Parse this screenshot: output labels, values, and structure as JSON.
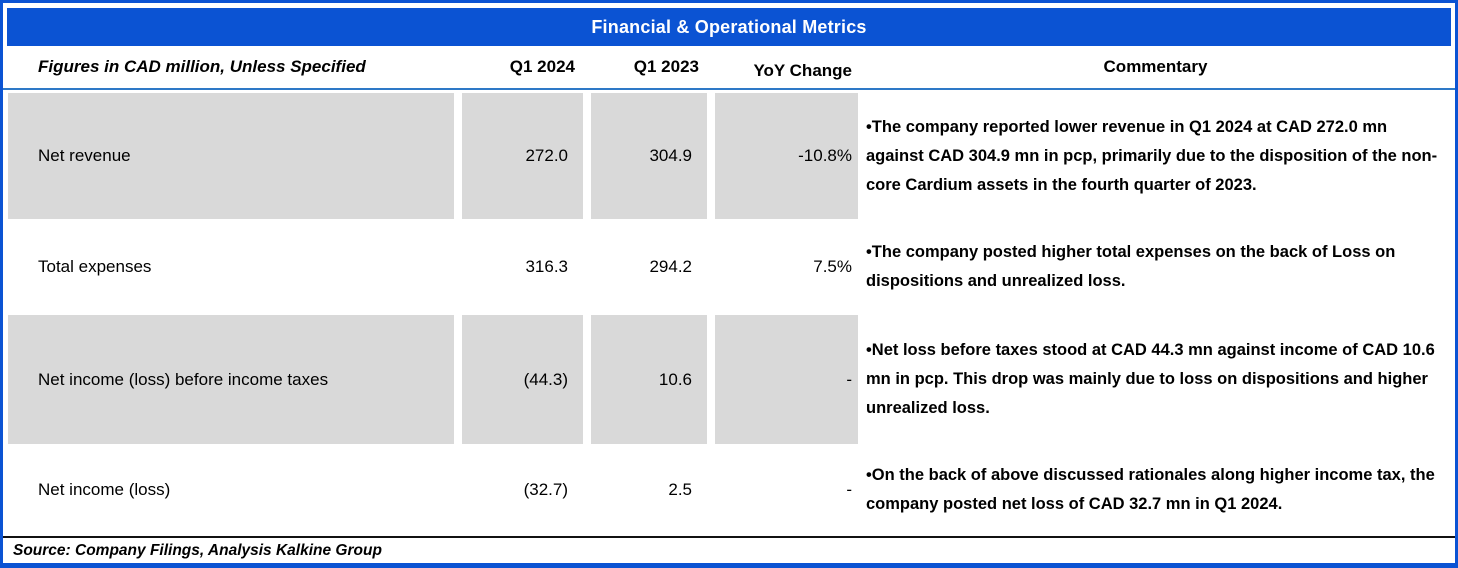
{
  "title": "Financial & Operational Metrics",
  "columns": {
    "label": "Figures in CAD million, Unless Specified",
    "q1_2024": "Q1 2024",
    "q1_2023": "Q1 2023",
    "yoy": "YoY Change",
    "commentary": "Commentary"
  },
  "bullet": "•",
  "rows": [
    {
      "label": "Net revenue",
      "q1_2024": "272.0",
      "q1_2023": "304.9",
      "yoy": "-10.8%",
      "commentary": "The company reported lower revenue in Q1 2024 at CAD 272.0 mn against CAD 304.9 mn in pcp,  primarily due to the disposition of the non-core Cardium assets in the fourth quarter of 2023."
    },
    {
      "label": "Total expenses",
      "q1_2024": "316.3",
      "q1_2023": "294.2",
      "yoy": "7.5%",
      "commentary": "The company posted higher total expenses on the back of Loss on dispositions and unrealized loss."
    },
    {
      "label": "Net income (loss) before income taxes",
      "q1_2024": "(44.3)",
      "q1_2023": "10.6",
      "yoy": "-",
      "commentary": "Net loss before taxes stood at CAD 44.3 mn against income of CAD 10.6 mn in pcp. This drop was mainly due to loss on dispositions and higher unrealized loss."
    },
    {
      "label": "Net income (loss)",
      "q1_2024": "(32.7)",
      "q1_2023": "2.5",
      "yoy": "-",
      "commentary": "On the back of above discussed rationales along higher income tax, the company posted net loss of CAD 32.7 mn in Q1 2024."
    }
  ],
  "source": "Source: Company Filings, Analysis Kalkine Group",
  "chart_data": {
    "type": "table",
    "title": "Financial & Operational Metrics",
    "unit_note": "Figures in CAD million, Unless Specified",
    "categories": [
      "Net revenue",
      "Total expenses",
      "Net income (loss) before income taxes",
      "Net income (loss)"
    ],
    "series": [
      {
        "name": "Q1 2024",
        "values": [
          272.0,
          316.3,
          -44.3,
          -32.7
        ]
      },
      {
        "name": "Q1 2023",
        "values": [
          304.9,
          294.2,
          10.6,
          2.5
        ]
      },
      {
        "name": "YoY Change",
        "values": [
          "-10.8%",
          "7.5%",
          "-",
          "-"
        ]
      }
    ]
  },
  "colors": {
    "title_bar_blue": "#0b53d3",
    "outer_border_blue": "#0b53d3",
    "header_rule_blue": "#2e79c7",
    "row_shade_gray": "#d9d9d9",
    "footer_rule_black": "#111111",
    "title_text": "#ffffff"
  }
}
